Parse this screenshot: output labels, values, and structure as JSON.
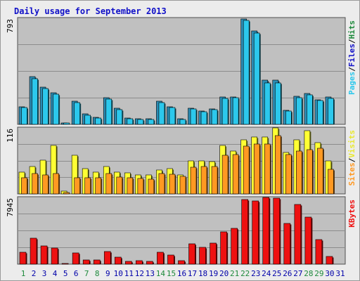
{
  "title": "Daily usage for September 2013",
  "colors": {
    "pages": "#2cc8ec",
    "files": "#2c8cb4",
    "visits": "#ffff33",
    "sites": "#ff9922",
    "kbytes": "#ee1111",
    "weekend": "#1e8a3c",
    "weekday": "#0000aa",
    "panel": "#c0c0c0",
    "axis_text": "#000000"
  },
  "chart_data": [
    {
      "type": "bar",
      "panel": "hits",
      "categories": [
        "1",
        "2",
        "3",
        "4",
        "5",
        "6",
        "7",
        "8",
        "9",
        "10",
        "11",
        "12",
        "13",
        "14",
        "15",
        "16",
        "17",
        "18",
        "19",
        "20",
        "21",
        "22",
        "23",
        "24",
        "25",
        "26",
        "27",
        "28",
        "29",
        "30",
        "31"
      ],
      "y_max_label": "793",
      "ylim": [
        0,
        793
      ],
      "side_labels": [
        {
          "text": "Pages",
          "color": "#2cc8ec"
        },
        {
          "text": "Files",
          "color": "#1010c8"
        },
        {
          "text": "Hits",
          "color": "#1e8a3c"
        }
      ],
      "series": [
        {
          "name": "Files",
          "color_key": "files",
          "values": [
            133,
            362,
            280,
            240,
            10,
            173,
            78,
            55,
            200,
            120,
            48,
            40,
            40,
            173,
            130,
            40,
            120,
            100,
            115,
            205,
            205,
            793,
            705,
            335,
            335,
            108,
            210,
            235,
            185,
            205,
            0
          ]
        },
        {
          "name": "Pages",
          "color_key": "pages",
          "values": [
            127,
            345,
            270,
            230,
            8,
            165,
            70,
            50,
            190,
            112,
            42,
            35,
            38,
            165,
            125,
            35,
            115,
            95,
            110,
            195,
            200,
            785,
            690,
            315,
            315,
            100,
            200,
            225,
            178,
            195,
            0
          ]
        }
      ]
    },
    {
      "type": "bar",
      "panel": "visits",
      "categories": [
        "1",
        "2",
        "3",
        "4",
        "5",
        "6",
        "7",
        "8",
        "9",
        "10",
        "11",
        "12",
        "13",
        "14",
        "15",
        "16",
        "17",
        "18",
        "19",
        "20",
        "21",
        "22",
        "23",
        "24",
        "25",
        "26",
        "27",
        "28",
        "29",
        "30",
        "31"
      ],
      "y_max_label": "116",
      "ylim": [
        0,
        116
      ],
      "side_labels": [
        {
          "text": "Sites",
          "color": "#ff9922"
        },
        {
          "text": "Visits",
          "color": "#e8e830"
        }
      ],
      "series": [
        {
          "name": "Visits",
          "color_key": "visits",
          "values": [
            39,
            48,
            59,
            86,
            5,
            68,
            45,
            39,
            48,
            38,
            37,
            34,
            34,
            42,
            45,
            33,
            58,
            58,
            57,
            86,
            76,
            96,
            100,
            100,
            116,
            73,
            95,
            111,
            90,
            58,
            0
          ]
        },
        {
          "name": "Sites",
          "color_key": "sites",
          "values": [
            29,
            36,
            34,
            36,
            3,
            29,
            29,
            28,
            36,
            30,
            29,
            27,
            26,
            36,
            35,
            31,
            47,
            48,
            48,
            68,
            69,
            84,
            88,
            88,
            103,
            69,
            75,
            78,
            81,
            44,
            0
          ]
        }
      ]
    },
    {
      "type": "bar",
      "panel": "kbytes",
      "categories": [
        "1",
        "2",
        "3",
        "4",
        "5",
        "6",
        "7",
        "8",
        "9",
        "10",
        "11",
        "12",
        "13",
        "14",
        "15",
        "16",
        "17",
        "18",
        "19",
        "20",
        "21",
        "22",
        "23",
        "24",
        "25",
        "26",
        "27",
        "28",
        "29",
        "30",
        "31"
      ],
      "y_max_label": "7945",
      "ylim": [
        0,
        7945
      ],
      "side_labels": [
        {
          "text": "KBytes",
          "color": "#ee1111"
        }
      ],
      "series": [
        {
          "name": "KBytes",
          "color_key": "kbytes",
          "values": [
            1400,
            3100,
            2200,
            1900,
            90,
            1350,
            530,
            530,
            1520,
            870,
            300,
            400,
            300,
            1400,
            1080,
            420,
            2400,
            2000,
            2500,
            3900,
            4300,
            7750,
            7600,
            7945,
            7860,
            4900,
            7160,
            5660,
            2900,
            950,
            0
          ]
        }
      ]
    }
  ],
  "weekend_days": [
    "1",
    "7",
    "8",
    "14",
    "15",
    "21",
    "22",
    "28",
    "29"
  ]
}
